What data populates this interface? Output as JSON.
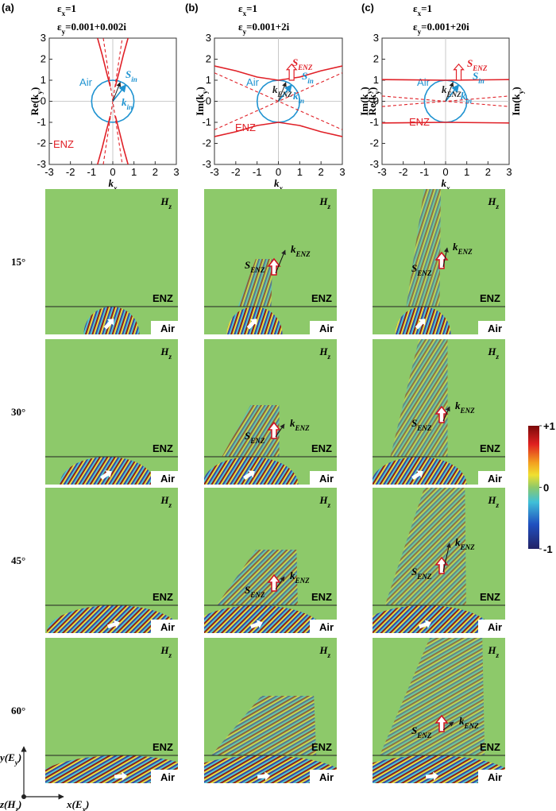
{
  "columns": [
    {
      "label": "(a)",
      "eps_x": [
        "ε",
        "x",
        "=1"
      ],
      "eps_y": [
        "ε",
        "y",
        "=0.001+0.002i"
      ]
    },
    {
      "label": "(b)",
      "eps_x": [
        "ε",
        "x",
        "=1"
      ],
      "eps_y": [
        "ε",
        "y",
        "=0.001+2i"
      ]
    },
    {
      "label": "(c)",
      "eps_x": [
        "ε",
        "x",
        "=1"
      ],
      "eps_y": [
        "ε",
        "y",
        "=0.001+20i"
      ]
    }
  ],
  "chart_data": [
    {
      "type": "line",
      "xlabel": [
        "k",
        "x"
      ],
      "ylabels": [
        [
          "Re(k",
          "y",
          ")"
        ]
      ],
      "xlim": [
        -3,
        3
      ],
      "ylim": [
        -3,
        3
      ],
      "xticks": [
        -3,
        -2,
        -1,
        0,
        1,
        2,
        3
      ],
      "yticks": [
        -3,
        -2,
        -1,
        0,
        1,
        2,
        3
      ],
      "series": [
        {
          "name": "Air",
          "color": "#1f93d1",
          "x": [
            1,
            0.97,
            0.87,
            0.71,
            0.5,
            0.26,
            0,
            -0.26,
            -0.5,
            -0.71,
            -0.87,
            -0.97,
            -1,
            -0.97,
            -0.87,
            -0.71,
            -0.5,
            -0.26,
            0,
            0.26,
            0.5,
            0.71,
            0.87,
            0.97,
            1
          ],
          "values": [
            0,
            0.26,
            0.5,
            0.71,
            0.87,
            0.97,
            1,
            0.97,
            0.87,
            0.71,
            0.5,
            0.26,
            0,
            -0.26,
            -0.5,
            -0.71,
            -0.87,
            -0.97,
            -1,
            -0.97,
            -0.87,
            -0.71,
            -0.5,
            -0.26,
            0
          ]
        },
        {
          "name": "ENZ",
          "color": "#e02027",
          "x": [
            -0.72,
            -0.5,
            -0.3,
            -0.12,
            null,
            0.72,
            0.5,
            0.3,
            0.12,
            null,
            -0.72,
            -0.5,
            -0.3,
            -0.12,
            null,
            0.72,
            0.5,
            0.3,
            0.12
          ],
          "values": [
            3,
            2.2,
            1.4,
            0.7,
            null,
            3,
            2.2,
            1.4,
            0.7,
            null,
            -3,
            -2.2,
            -1.4,
            -0.7,
            null,
            -3,
            -2.2,
            -1.4,
            -0.7
          ]
        },
        {
          "color": "#e02027",
          "dashed": true,
          "x": [
            -0.45,
            0.45,
            null,
            -0.45,
            0.45
          ],
          "values": [
            3,
            -3,
            null,
            -3,
            3
          ]
        }
      ],
      "labels": [
        {
          "text": [
            "S",
            "in"
          ],
          "color": "#1f93d1"
        },
        {
          "text": [
            "k",
            "in"
          ],
          "color": "#1f93d1"
        }
      ]
    },
    {
      "type": "line",
      "xlabel": [
        "k",
        "x"
      ],
      "ylabels": [
        [
          "Im(k",
          "y",
          ")"
        ]
      ],
      "xlim": [
        -3,
        3
      ],
      "ylim": [
        -3,
        3
      ],
      "xticks": [
        -3,
        -2,
        -1,
        0,
        1,
        2,
        3
      ],
      "yticks": [
        -3,
        -2,
        -1,
        0,
        1,
        2,
        3
      ],
      "series": [
        {
          "name": "Air",
          "color": "#1f93d1",
          "x": [
            1,
            0.97,
            0.87,
            0.71,
            0.5,
            0.26,
            0,
            -0.26,
            -0.5,
            -0.71,
            -0.87,
            -0.97,
            -1,
            -0.97,
            -0.87,
            -0.71,
            -0.5,
            -0.26,
            0,
            0.26,
            0.5,
            0.71,
            0.87,
            0.97,
            1
          ],
          "values": [
            0,
            0.26,
            0.5,
            0.71,
            0.87,
            0.97,
            1,
            0.97,
            0.87,
            0.71,
            0.5,
            0.26,
            0,
            -0.26,
            -0.5,
            -0.71,
            -0.87,
            -0.97,
            -1,
            -0.97,
            -0.87,
            -0.71,
            -0.5,
            -0.26,
            0
          ]
        },
        {
          "name": "ENZ",
          "color": "#e02027",
          "x": [
            -3,
            -2,
            -1,
            0,
            1,
            2,
            3,
            null,
            -3,
            -2,
            -1,
            0,
            1,
            2,
            3
          ],
          "values": [
            1.68,
            1.45,
            1.15,
            1.0,
            1.15,
            1.45,
            1.68,
            null,
            -1.68,
            -1.45,
            -1.15,
            -1.0,
            -1.15,
            -1.45,
            -1.68
          ]
        },
        {
          "color": "#e02027",
          "dashed": true,
          "x": [
            -3,
            3,
            null,
            -3,
            3
          ],
          "values": [
            -1.35,
            1.35,
            null,
            1.35,
            -1.35
          ]
        }
      ],
      "labels": [
        {
          "text": [
            "S",
            "ENZ"
          ],
          "color": "#e02027"
        },
        {
          "text": [
            "S",
            "in"
          ],
          "color": "#1f93d1"
        },
        {
          "text": [
            "k",
            "ENZ"
          ],
          "color": "#222222"
        },
        {
          "text": [
            "k",
            "in"
          ],
          "color": "#1f93d1"
        }
      ]
    },
    {
      "type": "line",
      "xlabel": [
        "k",
        "x"
      ],
      "ylabels": [
        [
          "Im(k",
          "y",
          ")"
        ],
        [
          "Re(k",
          "y",
          ")"
        ],
        [
          "Im(k",
          "y",
          ")"
        ]
      ],
      "xlim": [
        -3,
        3
      ],
      "ylim": [
        -3,
        3
      ],
      "xticks": [
        -3,
        -2,
        -1,
        0,
        1,
        2,
        3
      ],
      "yticks": [
        -3,
        -2,
        -1,
        0,
        1,
        2,
        3
      ],
      "series": [
        {
          "name": "Air",
          "color": "#1f93d1",
          "x": [
            1,
            0.97,
            0.87,
            0.71,
            0.5,
            0.26,
            0,
            -0.26,
            -0.5,
            -0.71,
            -0.87,
            -0.97,
            -1,
            -0.97,
            -0.87,
            -0.71,
            -0.5,
            -0.26,
            0,
            0.26,
            0.5,
            0.71,
            0.87,
            0.97,
            1
          ],
          "values": [
            0,
            0.26,
            0.5,
            0.71,
            0.87,
            0.97,
            1,
            0.97,
            0.87,
            0.71,
            0.5,
            0.26,
            0,
            -0.26,
            -0.5,
            -0.71,
            -0.87,
            -0.97,
            -1,
            -0.97,
            -0.87,
            -0.71,
            -0.5,
            -0.26,
            0
          ]
        },
        {
          "name": "ENZ",
          "color": "#e02027",
          "x": [
            -3,
            0,
            3,
            null,
            -3,
            0,
            3
          ],
          "values": [
            1.03,
            1.0,
            1.03,
            null,
            -1.03,
            -1.0,
            -1.03
          ]
        },
        {
          "color": "#e02027",
          "dashed": true,
          "x": [
            -3,
            3,
            null,
            -3,
            3
          ],
          "values": [
            -0.25,
            0.25,
            null,
            0.25,
            -0.25
          ]
        }
      ],
      "labels": [
        {
          "text": [
            "S",
            "ENZ"
          ],
          "color": "#e02027"
        },
        {
          "text": [
            "S",
            "in"
          ],
          "color": "#1f93d1"
        },
        {
          "text": [
            "k",
            "ENZ"
          ],
          "color": "#222222"
        },
        {
          "text": [
            "k",
            "in"
          ],
          "color": "#1f93d1"
        }
      ]
    }
  ],
  "rows": [
    "15°",
    "30°",
    "45°",
    "60°"
  ],
  "panels": [
    [
      {
        "field": [
          "H",
          "z"
        ],
        "upper": "ENZ",
        "lower": "Air"
      },
      {
        "field": [
          "H",
          "z"
        ],
        "upper": "ENZ",
        "lower": "Air"
      },
      {
        "field": [
          "H",
          "z"
        ],
        "upper": "ENZ",
        "lower": "Air"
      },
      {
        "field": [
          "H",
          "z"
        ],
        "upper": "ENZ",
        "lower": "Air"
      }
    ],
    [
      {
        "field": [
          "H",
          "z"
        ],
        "upper": "ENZ",
        "lower": "Air",
        "s": [
          "S",
          "ENZ"
        ],
        "k": [
          "k",
          "ENZ"
        ]
      },
      {
        "field": [
          "H",
          "z"
        ],
        "upper": "ENZ",
        "lower": "Air",
        "s": [
          "S",
          "ENZ"
        ],
        "k": [
          "k",
          "ENZ"
        ]
      },
      {
        "field": [
          "H",
          "z"
        ],
        "upper": "ENZ",
        "lower": "Air",
        "s": [
          "S",
          "ENZ"
        ],
        "k": [
          "k",
          "ENZ"
        ]
      },
      {
        "field": [
          "H",
          "z"
        ],
        "upper": "ENZ",
        "lower": "Air"
      }
    ],
    [
      {
        "field": [
          "H",
          "z"
        ],
        "upper": "ENZ",
        "lower": "Air",
        "s": [
          "S",
          "ENZ"
        ],
        "k": [
          "k",
          "ENZ"
        ]
      },
      {
        "field": [
          "H",
          "z"
        ],
        "upper": "ENZ",
        "lower": "Air",
        "s": [
          "S",
          "ENZ"
        ],
        "k": [
          "k",
          "ENZ"
        ]
      },
      {
        "field": [
          "H",
          "z"
        ],
        "upper": "ENZ",
        "lower": "Air",
        "s": [
          "S",
          "ENZ"
        ],
        "k": [
          "k",
          "ENZ"
        ]
      },
      {
        "field": [
          "H",
          "z"
        ],
        "upper": "ENZ",
        "lower": "Air",
        "s": [
          "S",
          "ENZ"
        ],
        "k": [
          "k",
          "ENZ"
        ]
      }
    ]
  ],
  "colorbar": {
    "lim": [
      -1,
      1
    ],
    "ticks": [
      {
        "value": 1,
        "label": "+1"
      },
      0,
      -1
    ]
  },
  "axes_legend": {
    "y": [
      "y(E",
      "y",
      ")"
    ],
    "z": [
      "z(H",
      "z",
      ")"
    ],
    "x": [
      "x(E",
      "x",
      ")"
    ]
  }
}
